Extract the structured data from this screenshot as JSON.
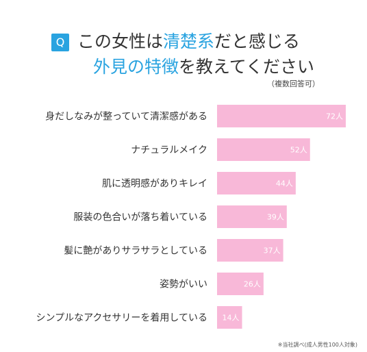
{
  "header": {
    "q_label": "Q",
    "title_line1_pre": "この女性は",
    "title_line1_highlight": "清楚系",
    "title_line1_post": "だと感じる",
    "title_line2_highlight": "外見の特徴",
    "title_line2_post": "を教えてください",
    "note": "（複数回答可）"
  },
  "colors": {
    "accent": "#29a3e0",
    "bar": "#f8b8d8"
  },
  "chart_data": {
    "type": "bar",
    "orientation": "horizontal",
    "categories": [
      "身だしなみが整っていて清潔感がある",
      "ナチュラルメイク",
      "肌に透明感がありキレイ",
      "服装の色合いが落ち着いている",
      "髪に艶がありサラサラとしている",
      "姿勢がいい",
      "シンプルなアクセサリーを着用している"
    ],
    "values": [
      72,
      52,
      44,
      39,
      37,
      26,
      14
    ],
    "value_labels": [
      "72人",
      "52人",
      "44人",
      "39人",
      "37人",
      "26人",
      "14人"
    ],
    "xlim": [
      0,
      72
    ],
    "grid": false
  },
  "footnote": "※当社調べ(成人男性100人対象)"
}
